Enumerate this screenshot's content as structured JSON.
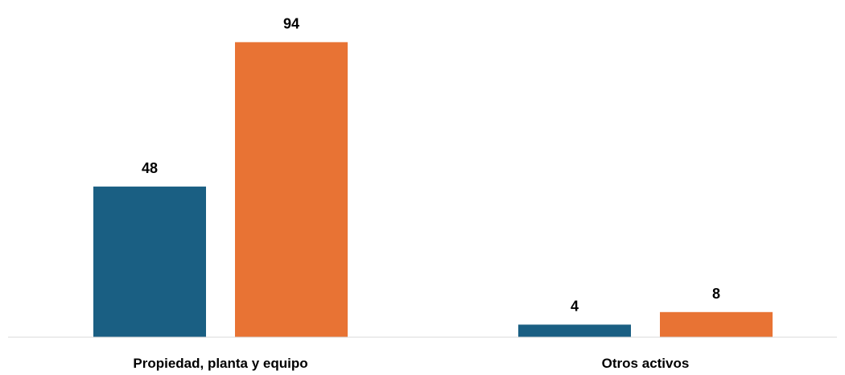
{
  "chart_data": {
    "type": "bar",
    "categories": [
      "Propiedad, planta y equipo",
      "Otros activos"
    ],
    "series": [
      {
        "values": [
          48,
          4
        ],
        "color": "#1a5f83"
      },
      {
        "values": [
          94,
          8
        ],
        "color": "#e87334"
      }
    ],
    "ylim": [
      0,
      100
    ],
    "grid": false,
    "legend": "none",
    "data_labels": true
  }
}
